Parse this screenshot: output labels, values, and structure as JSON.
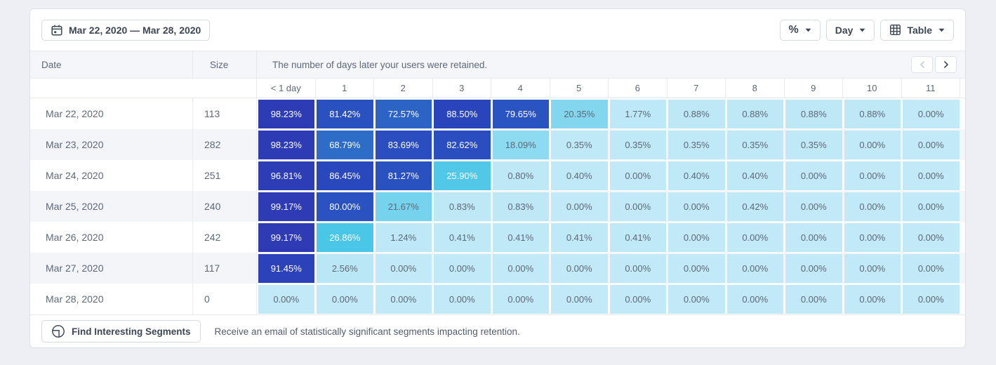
{
  "toolbar": {
    "date_range_label": "Mar 22, 2020 — Mar 28, 2020",
    "metric_label": "%",
    "granularity_label": "Day",
    "view_label": "Table"
  },
  "table": {
    "date_header": "Date",
    "size_header": "Size",
    "description": "The number of days later your users were retained.",
    "columns": [
      "< 1 day",
      "1",
      "2",
      "3",
      "4",
      "5",
      "6",
      "7",
      "8",
      "9",
      "10",
      "11"
    ],
    "rows": [
      {
        "date": "Mar 22, 2020",
        "size": "113",
        "values": [
          98.23,
          81.42,
          72.57,
          88.5,
          79.65,
          20.35,
          1.77,
          0.88,
          0.88,
          0.88,
          0.88,
          0.0
        ]
      },
      {
        "date": "Mar 23, 2020",
        "size": "282",
        "values": [
          98.23,
          68.79,
          83.69,
          82.62,
          18.09,
          0.35,
          0.35,
          0.35,
          0.35,
          0.35,
          0.0,
          0.0
        ]
      },
      {
        "date": "Mar 24, 2020",
        "size": "251",
        "values": [
          96.81,
          86.45,
          81.27,
          25.9,
          0.8,
          0.4,
          0.0,
          0.4,
          0.4,
          0.0,
          0.0,
          0.0
        ]
      },
      {
        "date": "Mar 25, 2020",
        "size": "240",
        "values": [
          99.17,
          80.0,
          21.67,
          0.83,
          0.83,
          0.0,
          0.0,
          0.0,
          0.42,
          0.0,
          0.0,
          0.0
        ]
      },
      {
        "date": "Mar 26, 2020",
        "size": "242",
        "values": [
          99.17,
          26.86,
          1.24,
          0.41,
          0.41,
          0.41,
          0.41,
          0.0,
          0.0,
          0.0,
          0.0,
          0.0
        ]
      },
      {
        "date": "Mar 27, 2020",
        "size": "117",
        "values": [
          91.45,
          2.56,
          0.0,
          0.0,
          0.0,
          0.0,
          0.0,
          0.0,
          0.0,
          0.0,
          0.0,
          0.0
        ]
      },
      {
        "date": "Mar 28, 2020",
        "size": "0",
        "values": [
          0.0,
          0.0,
          0.0,
          0.0,
          0.0,
          0.0,
          0.0,
          0.0,
          0.0,
          0.0,
          0.0,
          0.0
        ]
      }
    ]
  },
  "footer": {
    "button_label": "Find Interesting Segments",
    "description": "Receive an email of statistically significant segments impacting retention."
  },
  "icons": {
    "date_range": "calendar-icon",
    "metric": "percent-glyph",
    "dropdowns": "caret-down-icon",
    "view": "table-grid-icon",
    "pager_prev": "chevron-left-icon",
    "pager_next": "chevron-right-icon",
    "find_segments": "signal-icon"
  },
  "colors": {
    "page_bg": "#edeff5",
    "card_bg": "#ffffff",
    "band_bg": "#f5f6fa",
    "stripe_row": "#f3f5f9",
    "border": "#e6e9ef",
    "button_border": "#d5dae1",
    "text_gray": "#5d6878",
    "button_text": "#3d4654",
    "cell_text_dark": "#5d6878",
    "cell_text_light": "#ffffff",
    "white_text_threshold": 24,
    "cell_scale": [
      {
        "v": 0,
        "c": "#c1e9f7"
      },
      {
        "v": 15,
        "c": "#98dff3"
      },
      {
        "v": 20,
        "c": "#85d8f0"
      },
      {
        "v": 24,
        "c": "#60cdea"
      },
      {
        "v": 28,
        "c": "#41c3e4"
      },
      {
        "v": 40,
        "c": "#32abda"
      },
      {
        "v": 55,
        "c": "#2f8ed1"
      },
      {
        "v": 70,
        "c": "#2d6ac7"
      },
      {
        "v": 80,
        "c": "#2a53c1"
      },
      {
        "v": 88,
        "c": "#2a45bc"
      },
      {
        "v": 100,
        "c": "#2e3ab4"
      }
    ]
  }
}
